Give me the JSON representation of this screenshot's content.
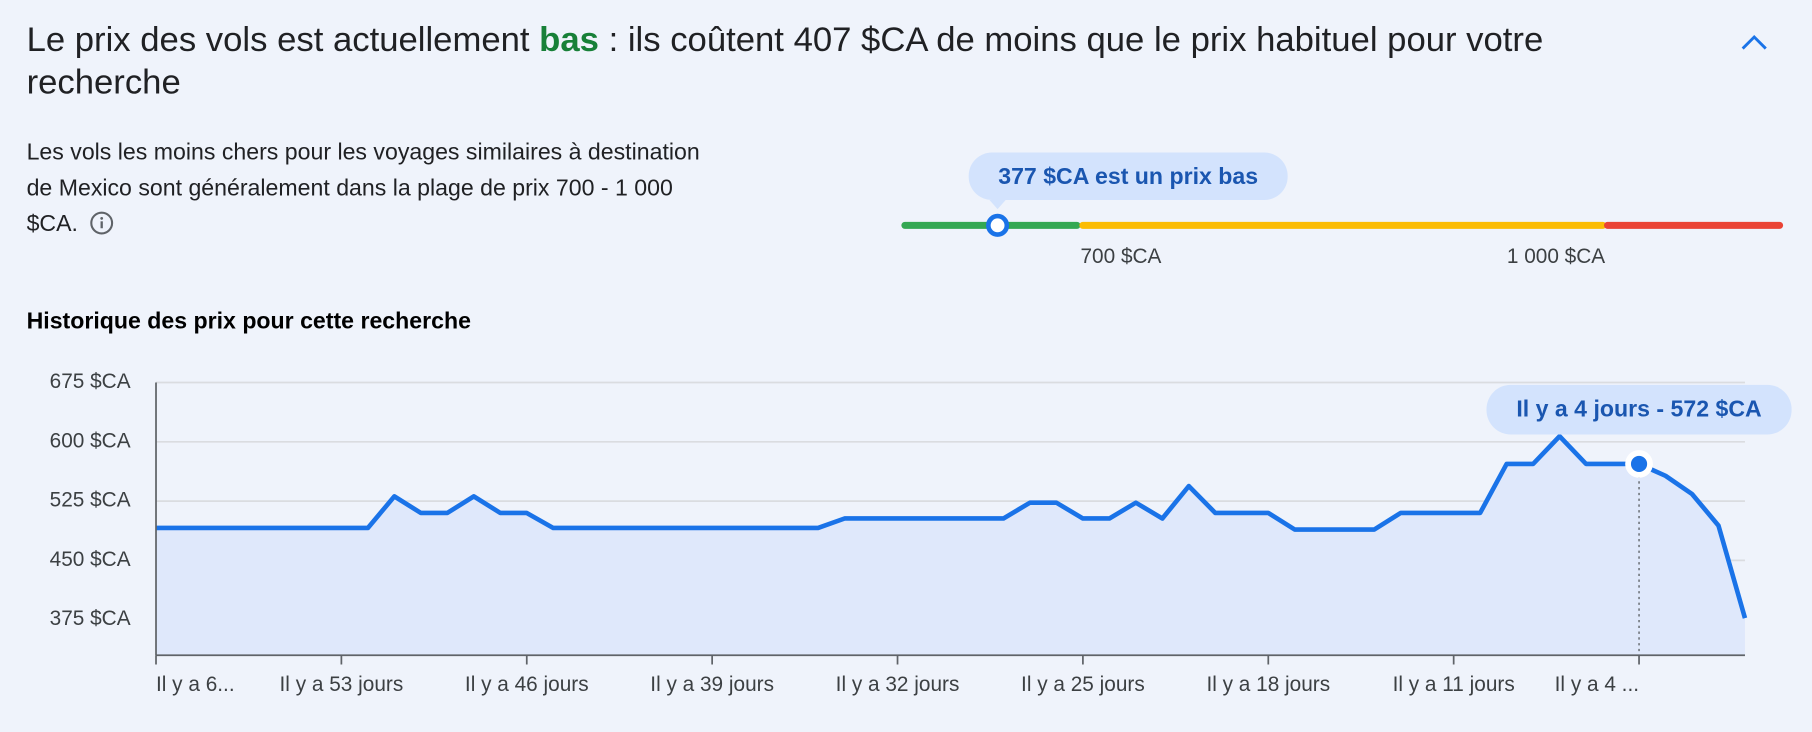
{
  "header": {
    "prefix": "Le prix des vols est actuellement",
    "level": "bas",
    "suffix": ": ils coûtent 407 $CA de moins que le prix habituel pour votre recherche"
  },
  "description": "Les vols les moins chers pour les voyages similaires à destination de Mexico sont généralement dans la plage de prix 700 - 1 000 $CA.",
  "price_level": {
    "label": "377 $CA est un prix bas",
    "current": 377,
    "thresholds": [
      {
        "value": 700,
        "label": "700 $CA"
      },
      {
        "value": 1000,
        "label": "1 000 $CA"
      }
    ]
  },
  "chart_data": {
    "type": "line",
    "title": "Historique des prix pour cette recherche",
    "color": "#1a73e8",
    "x": [
      60,
      59,
      58,
      57,
      56,
      55,
      54,
      53,
      52,
      51,
      50,
      49,
      48,
      47,
      46,
      45,
      44,
      43,
      42,
      41,
      40,
      39,
      38,
      37,
      36,
      35,
      34,
      33,
      32,
      31,
      30,
      29,
      28,
      27,
      26,
      25,
      24,
      23,
      22,
      21,
      20,
      19,
      18,
      17,
      16,
      15,
      14,
      13,
      12,
      11,
      10,
      9,
      8,
      7,
      6,
      5,
      4,
      3,
      2,
      1,
      0
    ],
    "values": [
      491,
      491,
      491,
      491,
      491,
      491,
      491,
      491,
      491,
      531,
      510,
      510,
      531,
      510,
      510,
      491,
      491,
      491,
      491,
      491,
      491,
      491,
      491,
      491,
      491,
      491,
      503,
      503,
      503,
      503,
      503,
      503,
      503,
      523,
      523,
      503,
      503,
      523,
      503,
      544,
      510,
      510,
      510,
      489,
      489,
      489,
      489,
      510,
      510,
      510,
      510,
      572,
      572,
      607,
      572,
      572,
      572,
      557,
      534,
      494,
      377
    ],
    "xlim": [
      60,
      0
    ],
    "xticks": [
      {
        "value": 60,
        "label": "Il y a 6..."
      },
      {
        "value": 53,
        "label": "Il y a 53 jours"
      },
      {
        "value": 46,
        "label": "Il y a 46 jours"
      },
      {
        "value": 39,
        "label": "Il y a 39 jours"
      },
      {
        "value": 32,
        "label": "Il y a 32 jours"
      },
      {
        "value": 25,
        "label": "Il y a 25 jours"
      },
      {
        "value": 18,
        "label": "Il y a 18 jours"
      },
      {
        "value": 11,
        "label": "Il y a 11 jours"
      },
      {
        "value": 4,
        "label": "Il y a 4 ..."
      }
    ],
    "ylim": [
      330,
      675
    ],
    "yticks": [
      {
        "value": 375,
        "label": "375 $CA"
      },
      {
        "value": 450,
        "label": "450 $CA"
      },
      {
        "value": 525,
        "label": "525 $CA"
      },
      {
        "value": 600,
        "label": "600 $CA"
      },
      {
        "value": 675,
        "label": "675 $CA"
      }
    ],
    "grid": true,
    "tooltip": {
      "text": "Il y a 4 jours - 572 $CA",
      "x": 4
    }
  }
}
